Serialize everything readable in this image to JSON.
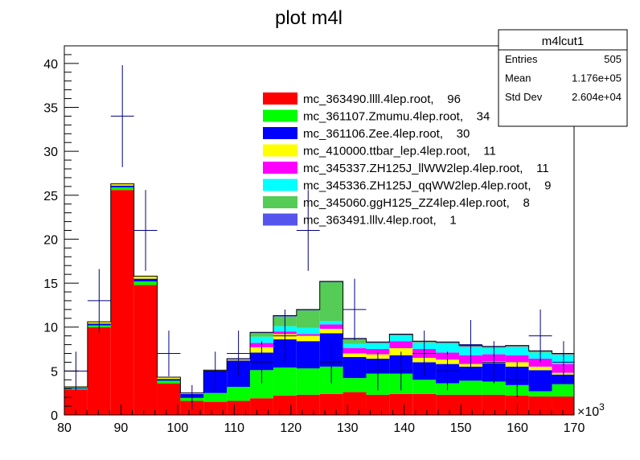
{
  "chart_data": {
    "type": "bar",
    "stacked": true,
    "title": "plot m4l",
    "x_multiplier_label": "×10",
    "x_multiplier_exp": "3",
    "xlim": [
      80,
      170
    ],
    "ylim": [
      0,
      42
    ],
    "x_ticks": [
      "80",
      "90",
      "100",
      "110",
      "120",
      "130",
      "140",
      "150",
      "160",
      "170"
    ],
    "x_tick_values": [
      80,
      90,
      100,
      110,
      120,
      130,
      140,
      150,
      160,
      170
    ],
    "y_ticks": [
      "0",
      "5",
      "10",
      "15",
      "20",
      "25",
      "30",
      "35",
      "40"
    ],
    "y_tick_values": [
      0,
      5,
      10,
      15,
      20,
      25,
      30,
      35,
      40
    ],
    "bin_edges": [
      80,
      84.1,
      88.2,
      92.3,
      96.4,
      100.5,
      104.6,
      108.7,
      112.8,
      116.9,
      121,
      125.1,
      129.2,
      133.3,
      137.4,
      141.5,
      145.6,
      149.7,
      153.8,
      157.9,
      162,
      166.1,
      170
    ],
    "series": [
      {
        "name": "mc_363490.llll.4lep.root,    96",
        "color": "#ff0000",
        "values": [
          2.9,
          10.0,
          25.6,
          14.8,
          3.6,
          1.6,
          1.5,
          1.6,
          1.9,
          2.2,
          2.3,
          2.4,
          2.6,
          2.3,
          2.4,
          2.4,
          2.3,
          2.3,
          2.3,
          2.2,
          2.1,
          2.1
        ]
      },
      {
        "name": "mc_361107.Zmumu.4lep.root,    34",
        "color": "#00ff00",
        "values": [
          0.1,
          0.2,
          0.3,
          0.4,
          0.3,
          0.4,
          1.0,
          1.6,
          3.2,
          3.2,
          3.0,
          3.1,
          1.6,
          2.4,
          2.3,
          1.6,
          1.3,
          1.6,
          1.5,
          1.2,
          0.6,
          1.4
        ]
      },
      {
        "name": "mc_361106.Zee.4lep.root,    30",
        "color": "#0000ff",
        "values": [
          0.1,
          0.2,
          0.2,
          0.3,
          0.2,
          0.4,
          2.5,
          3.0,
          2.0,
          3.2,
          3.1,
          3.8,
          2.4,
          1.7,
          2.1,
          2.0,
          2.2,
          1.6,
          2.1,
          2.1,
          2.4,
          1.1
        ]
      },
      {
        "name": "mc_410000.ttbar_lep.4lep.root,    11",
        "color": "#ffff00",
        "values": [
          0.1,
          0.2,
          0.2,
          0.3,
          0.2,
          0.1,
          0.1,
          0.1,
          0.6,
          0.6,
          0.6,
          0.5,
          0.4,
          0.5,
          0.8,
          0.5,
          0.5,
          0.3,
          0.2,
          0.5,
          0.4,
          0.2
        ]
      },
      {
        "name": "mc_345337.ZH125J_llWW2lep.4lep.root,    11",
        "color": "#ff00ff",
        "values": [
          0,
          0,
          0,
          0,
          0,
          0,
          0,
          0,
          0.5,
          0.3,
          0.2,
          0.5,
          0.6,
          0.6,
          0.8,
          1.0,
          0.8,
          1.0,
          0.8,
          0.8,
          0.9,
          1.0
        ]
      },
      {
        "name": "mc_345336.ZH125J_qqWW2lep.4lep.root,    9",
        "color": "#00ffff",
        "values": [
          0,
          0,
          0,
          0,
          0,
          0,
          0,
          0,
          0.7,
          0.6,
          0.7,
          0.4,
          0.5,
          0.6,
          0.6,
          0.7,
          1.0,
          0.9,
          0.7,
          0.9,
          0.7,
          1.0
        ]
      },
      {
        "name": "mc_345060.ggH125_ZZ4lep.4lep.root,    8",
        "color": "#55cc55",
        "values": [
          0,
          0,
          0,
          0,
          0,
          0,
          0,
          0,
          0.4,
          1.1,
          2.0,
          4.4,
          0.5,
          0.1,
          0.1,
          0.1,
          0.1,
          0.1,
          0.1,
          0.1,
          0.1,
          0.1
        ]
      },
      {
        "name": "mc_363491.lllv.4lep.root,    1",
        "color": "#5555ee",
        "values": [
          0,
          0,
          0,
          0,
          0,
          0,
          0,
          0.1,
          0.1,
          0.1,
          0.1,
          0.1,
          0.1,
          0.1,
          0.1,
          0.1,
          0.1,
          0.1,
          0.1,
          0.1,
          0.1,
          0.1
        ]
      }
    ],
    "data_points": {
      "x": [
        82.05,
        86.15,
        90.25,
        94.35,
        98.45,
        102.55,
        106.65,
        110.75,
        114.85,
        118.95,
        123.05,
        127.15,
        131.25,
        135.35,
        139.45,
        143.55,
        147.65,
        151.75,
        155.85,
        159.95,
        164.05,
        168.15
      ],
      "y": [
        5,
        13,
        34,
        21,
        7,
        2,
        5,
        7,
        6,
        9,
        21,
        6,
        12,
        5,
        5,
        7,
        5,
        8,
        6,
        4,
        9,
        6
      ],
      "err": [
        2.2,
        3.6,
        5.8,
        4.6,
        2.6,
        1.4,
        2.2,
        2.6,
        2.4,
        3.0,
        4.6,
        2.4,
        3.5,
        2.2,
        2.2,
        2.6,
        2.2,
        2.8,
        2.4,
        2.0,
        3.0,
        2.4
      ]
    },
    "stats_box": {
      "title": "m4lcut1",
      "rows": [
        {
          "label": "Entries",
          "value": "505"
        },
        {
          "label": "Mean",
          "value": "1.176e+05"
        },
        {
          "label": "Std Dev",
          "value": "2.604e+04"
        }
      ]
    },
    "grid": false,
    "legend_position": "top-right"
  }
}
